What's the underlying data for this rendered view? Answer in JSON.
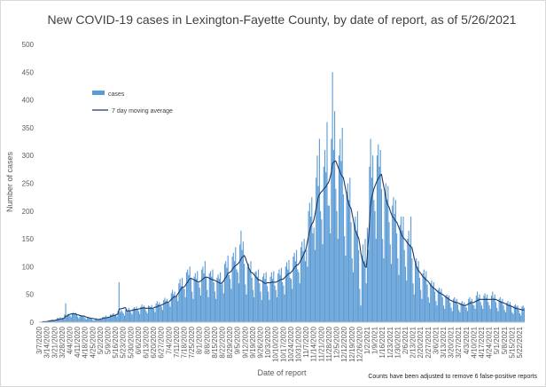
{
  "chart_data": {
    "type": "bar",
    "title": "New COVID-19 cases in Lexington-Fayette County, by date of report, as of 5/26/2021",
    "x_label": "Date of report",
    "y_label": "Number of cases",
    "annotation": "Counts have been adjusted to remove 6 false-positive reports",
    "ylim": [
      0,
      500
    ],
    "yticks": [
      0,
      50,
      100,
      150,
      200,
      250,
      300,
      350,
      400,
      450,
      500
    ],
    "grid": false,
    "legend": "upper left",
    "categories": [
      "3/7/2020",
      null,
      null,
      null,
      null,
      null,
      null,
      "3/14/2020",
      null,
      null,
      null,
      null,
      null,
      null,
      "3/21/2020",
      null,
      null,
      null,
      null,
      null,
      null,
      "3/28/2020",
      null,
      null,
      null,
      null,
      null,
      null,
      "4/4/2020",
      null,
      null,
      null,
      null,
      null,
      null,
      "4/11/2020",
      null,
      null,
      null,
      null,
      null,
      null,
      "4/18/2020",
      null,
      null,
      null,
      null,
      null,
      null,
      "4/25/2020",
      null,
      null,
      null,
      null,
      null,
      null,
      "5/2/2020",
      null,
      null,
      null,
      null,
      null,
      null,
      "5/9/2020",
      null,
      null,
      null,
      null,
      null,
      null,
      "5/16/2020",
      null,
      null,
      null,
      null,
      null,
      null,
      "5/23/2020",
      null,
      null,
      null,
      null,
      null,
      null,
      "5/30/2020",
      null,
      null,
      null,
      null,
      null,
      null,
      "6/6/2020",
      null,
      null,
      null,
      null,
      null,
      null,
      "6/13/2020",
      null,
      null,
      null,
      null,
      null,
      null,
      "6/20/2020",
      null,
      null,
      null,
      null,
      null,
      null,
      "6/27/2020",
      null,
      null,
      null,
      null,
      null,
      null,
      "7/4/2020",
      null,
      null,
      null,
      null,
      null,
      null,
      "7/11/2020",
      null,
      null,
      null,
      null,
      null,
      null,
      "7/18/2020",
      null,
      null,
      null,
      null,
      null,
      null,
      "7/25/2020",
      null,
      null,
      null,
      null,
      null,
      null,
      "8/1/2020",
      null,
      null,
      null,
      null,
      null,
      null,
      "8/8/2020",
      null,
      null,
      null,
      null,
      null,
      null,
      "8/15/2020",
      null,
      null,
      null,
      null,
      null,
      null,
      "8/22/2020",
      null,
      null,
      null,
      null,
      null,
      null,
      "8/29/2020",
      null,
      null,
      null,
      null,
      null,
      null,
      "9/5/2020",
      null,
      null,
      null,
      null,
      null,
      null,
      "9/12/2020",
      null,
      null,
      null,
      null,
      null,
      null,
      "9/19/2020",
      null,
      null,
      null,
      null,
      null,
      null,
      "9/26/2020",
      null,
      null,
      null,
      null,
      null,
      null,
      "10/3/2020",
      null,
      null,
      null,
      null,
      null,
      null,
      "10/10/2020",
      null,
      null,
      null,
      null,
      null,
      null,
      "10/17/2020",
      null,
      null,
      null,
      null,
      null,
      null,
      "10/24/2020",
      null,
      null,
      null,
      null,
      null,
      null,
      "10/31/2020",
      null,
      null,
      null,
      null,
      null,
      null,
      "11/7/2020",
      null,
      null,
      null,
      null,
      null,
      null,
      "11/14/2020",
      null,
      null,
      null,
      null,
      null,
      null,
      "11/21/2020",
      null,
      null,
      null,
      null,
      null,
      null,
      "11/28/2020",
      null,
      null,
      null,
      null,
      null,
      null,
      "12/5/2020",
      null,
      null,
      null,
      null,
      null,
      null,
      "12/12/2020",
      null,
      null,
      null,
      null,
      null,
      null,
      "12/19/2020",
      null,
      null,
      null,
      null,
      null,
      null,
      "12/26/2020",
      null,
      null,
      null,
      null,
      null,
      null,
      "1/2/2021",
      null,
      null,
      null,
      null,
      null,
      null,
      "1/9/2021",
      null,
      null,
      null,
      null,
      null,
      null,
      "1/16/2021",
      null,
      null,
      null,
      null,
      null,
      null,
      "1/23/2021",
      null,
      null,
      null,
      null,
      null,
      null,
      "1/30/2021",
      null,
      null,
      null,
      null,
      null,
      null,
      "2/6/2021",
      null,
      null,
      null,
      null,
      null,
      null,
      "2/13/2021",
      null,
      null,
      null,
      null,
      null,
      null,
      "2/20/2021",
      null,
      null,
      null,
      null,
      null,
      null,
      "2/27/2021",
      null,
      null,
      null,
      null,
      null,
      null,
      "3/6/2021",
      null,
      null,
      null,
      null,
      null,
      null,
      "3/13/2021",
      null,
      null,
      null,
      null,
      null,
      null,
      "3/20/2021",
      null,
      null,
      null,
      null,
      null,
      null,
      "3/27/2021",
      null,
      null,
      null,
      null,
      null,
      null,
      "4/3/2021",
      null,
      null,
      null,
      null,
      null,
      null,
      "4/10/2021",
      null,
      null,
      null,
      null,
      null,
      null,
      "4/17/2021",
      null,
      null,
      null,
      null,
      null,
      null,
      "4/24/2021",
      null,
      null,
      null,
      null,
      null,
      null,
      "5/1/2021",
      null,
      null,
      null,
      null,
      null,
      null,
      "5/8/2021",
      null,
      null,
      null,
      null,
      null,
      null,
      "5/15/2021",
      null,
      null,
      null,
      null,
      null,
      null,
      "5/22/2021",
      null,
      null,
      null,
      null
    ],
    "series": [
      {
        "name": "cases",
        "color": "#5b9bd5",
        "values": [
          0,
          0,
          0,
          1,
          1,
          2,
          2,
          2,
          1,
          3,
          4,
          3,
          5,
          4,
          4,
          3,
          7,
          8,
          6,
          9,
          7,
          8,
          6,
          14,
          34,
          12,
          15,
          13,
          12,
          9,
          16,
          18,
          14,
          17,
          15,
          10,
          7,
          12,
          13,
          11,
          12,
          9,
          7,
          5,
          8,
          9,
          7,
          8,
          6,
          4,
          3,
          6,
          7,
          5,
          6,
          5,
          6,
          5,
          9,
          10,
          8,
          12,
          9,
          10,
          8,
          14,
          13,
          15,
          16,
          12,
          14,
          10,
          20,
          72,
          18,
          22,
          19,
          16,
          12,
          22,
          24,
          20,
          26,
          21,
          18,
          14,
          25,
          27,
          24,
          28,
          22,
          20,
          15,
          28,
          32,
          27,
          30,
          25,
          20,
          16,
          30,
          29,
          27,
          31,
          24,
          24,
          18,
          34,
          38,
          32,
          36,
          30,
          28,
          22,
          40,
          44,
          38,
          42,
          36,
          35,
          28,
          52,
          58,
          50,
          55,
          45,
          48,
          38,
          70,
          78,
          65,
          80,
          62,
          60,
          45,
          90,
          95,
          85,
          100,
          78,
          55,
          42,
          82,
          88,
          78,
          92,
          70,
          62,
          48,
          95,
          100,
          88,
          110,
          82,
          58,
          45,
          88,
          92,
          82,
          95,
          72,
          55,
          42,
          80,
          86,
          78,
          90,
          68,
          70,
          52,
          105,
          110,
          98,
          120,
          85,
          78,
          60,
          118,
          125,
          110,
          135,
          95,
          90,
          70,
          140,
          165,
          130,
          145,
          105,
          68,
          50,
          100,
          105,
          95,
          110,
          80,
          58,
          45,
          90,
          92,
          82,
          95,
          70,
          55,
          40,
          82,
          88,
          78,
          90,
          65,
          55,
          40,
          82,
          90,
          78,
          92,
          66,
          58,
          45,
          88,
          95,
          85,
          98,
          72,
          66,
          50,
          100,
          108,
          95,
          112,
          80,
          78,
          60,
          118,
          125,
          110,
          130,
          95,
          90,
          70,
          135,
          145,
          128,
          150,
          110,
          130,
          100,
          200,
          215,
          190,
          225,
          160,
          170,
          130,
          260,
          300,
          245,
          330,
          200,
          185,
          140,
          280,
          310,
          270,
          360,
          210,
          210,
          160,
          330,
          450,
          310,
          380,
          240,
          200,
          150,
          300,
          330,
          290,
          350,
          230,
          155,
          120,
          235,
          250,
          220,
          260,
          180,
          115,
          90,
          175,
          190,
          165,
          200,
          130,
          60,
          30,
          120,
          140,
          110,
          150,
          70,
          170,
          130,
          280,
          330,
          260,
          300,
          220,
          200,
          150,
          300,
          320,
          280,
          310,
          240,
          150,
          115,
          235,
          250,
          220,
          245,
          180,
          140,
          105,
          210,
          225,
          195,
          220,
          160,
          115,
          85,
          175,
          190,
          165,
          190,
          130,
          100,
          75,
          150,
          165,
          140,
          190,
          115,
          70,
          50,
          105,
          115,
          100,
          110,
          80,
          58,
          42,
          88,
          95,
          82,
          92,
          68,
          45,
          35,
          70,
          75,
          65,
          72,
          55,
          38,
          30,
          58,
          62,
          55,
          60,
          45,
          30,
          24,
          48,
          50,
          45,
          48,
          35,
          26,
          20,
          42,
          45,
          38,
          42,
          32,
          22,
          18,
          35,
          38,
          32,
          36,
          28,
          26,
          20,
          42,
          45,
          38,
          42,
          32,
          30,
          24,
          48,
          55,
          44,
          50,
          36,
          30,
          24,
          48,
          52,
          44,
          50,
          36,
          30,
          24,
          48,
          55,
          44,
          50,
          36,
          26,
          20,
          42,
          45,
          38,
          42,
          30,
          22,
          18,
          35,
          38,
          32,
          36,
          28,
          18,
          15,
          30,
          32,
          28,
          30,
          22,
          16,
          12,
          28,
          30,
          26
        ]
      },
      {
        "name": "7 day moving average",
        "color": "#1f3864",
        "values": [
          0,
          0,
          0,
          1,
          1,
          1,
          1,
          1,
          2,
          2,
          2,
          3,
          3,
          3,
          3,
          4,
          4,
          5,
          5,
          6,
          6,
          6,
          7,
          8,
          11,
          11,
          12,
          14,
          14,
          15,
          15,
          15,
          15,
          15,
          14,
          13,
          13,
          12,
          12,
          11,
          11,
          11,
          10,
          9,
          9,
          8,
          8,
          7,
          7,
          7,
          6,
          6,
          6,
          5,
          5,
          5,
          6,
          6,
          7,
          7,
          8,
          8,
          8,
          9,
          9,
          10,
          11,
          11,
          12,
          12,
          13,
          14,
          15,
          23,
          24,
          24,
          25,
          25,
          26,
          26,
          20,
          20,
          21,
          20,
          21,
          21,
          22,
          22,
          23,
          23,
          23,
          24,
          24,
          25,
          25,
          26,
          26,
          25,
          25,
          25,
          25,
          25,
          25,
          25,
          25,
          26,
          27,
          27,
          28,
          29,
          30,
          30,
          31,
          32,
          33,
          34,
          35,
          36,
          36,
          37,
          39,
          41,
          43,
          45,
          46,
          46,
          48,
          51,
          54,
          57,
          60,
          63,
          63,
          64,
          66,
          70,
          72,
          76,
          78,
          79,
          78,
          77,
          76,
          75,
          74,
          73,
          72,
          73,
          74,
          76,
          78,
          79,
          81,
          81,
          81,
          80,
          79,
          78,
          77,
          76,
          76,
          75,
          74,
          73,
          72,
          71,
          70,
          70,
          72,
          74,
          78,
          80,
          84,
          88,
          89,
          90,
          92,
          95,
          98,
          100,
          102,
          103,
          105,
          107,
          110,
          114,
          117,
          118,
          120,
          116,
          110,
          105,
          98,
          94,
          90,
          89,
          88,
          85,
          83,
          80,
          78,
          76,
          76,
          75,
          74,
          73,
          71,
          70,
          70,
          71,
          71,
          71,
          71,
          72,
          72,
          72,
          72,
          72,
          73,
          74,
          75,
          76,
          77,
          77,
          78,
          80,
          82,
          84,
          86,
          88,
          88,
          90,
          92,
          95,
          98,
          100,
          103,
          103,
          105,
          108,
          112,
          116,
          120,
          124,
          128,
          135,
          145,
          155,
          165,
          172,
          177,
          179,
          185,
          195,
          205,
          215,
          225,
          230,
          233,
          235,
          237,
          240,
          242,
          244,
          248,
          250,
          255,
          262,
          270,
          285,
          288,
          290,
          290,
          285,
          280,
          275,
          270,
          265,
          262,
          260,
          250,
          240,
          230,
          220,
          212,
          208,
          205,
          195,
          185,
          175,
          165,
          160,
          155,
          152,
          140,
          125,
          115,
          110,
          105,
          100,
          99,
          120,
          150,
          180,
          210,
          225,
          232,
          240,
          245,
          250,
          255,
          258,
          262,
          265,
          266,
          255,
          245,
          235,
          225,
          215,
          210,
          207,
          200,
          195,
          190,
          188,
          185,
          182,
          180,
          175,
          170,
          165,
          160,
          155,
          152,
          150,
          148,
          145,
          142,
          140,
          138,
          136,
          134,
          125,
          115,
          108,
          100,
          96,
          93,
          90,
          88,
          85,
          82,
          80,
          78,
          76,
          75,
          73,
          70,
          67,
          65,
          63,
          61,
          60,
          58,
          56,
          54,
          53,
          52,
          51,
          50,
          49,
          47,
          45,
          44,
          43,
          41,
          40,
          39,
          38,
          37,
          36,
          36,
          35,
          35,
          34,
          33,
          32,
          31,
          31,
          30,
          30,
          31,
          32,
          33,
          34,
          35,
          35,
          35,
          36,
          37,
          38,
          39,
          40,
          41,
          41,
          41,
          41,
          41,
          41,
          41,
          41,
          41,
          41,
          41,
          41,
          41,
          41,
          41,
          41,
          40,
          39,
          38,
          37,
          36,
          35,
          35,
          34,
          33,
          32,
          31,
          30,
          30,
          29,
          28,
          27,
          26,
          25,
          25,
          24,
          24,
          23,
          23,
          22,
          22,
          22
        ]
      }
    ]
  }
}
